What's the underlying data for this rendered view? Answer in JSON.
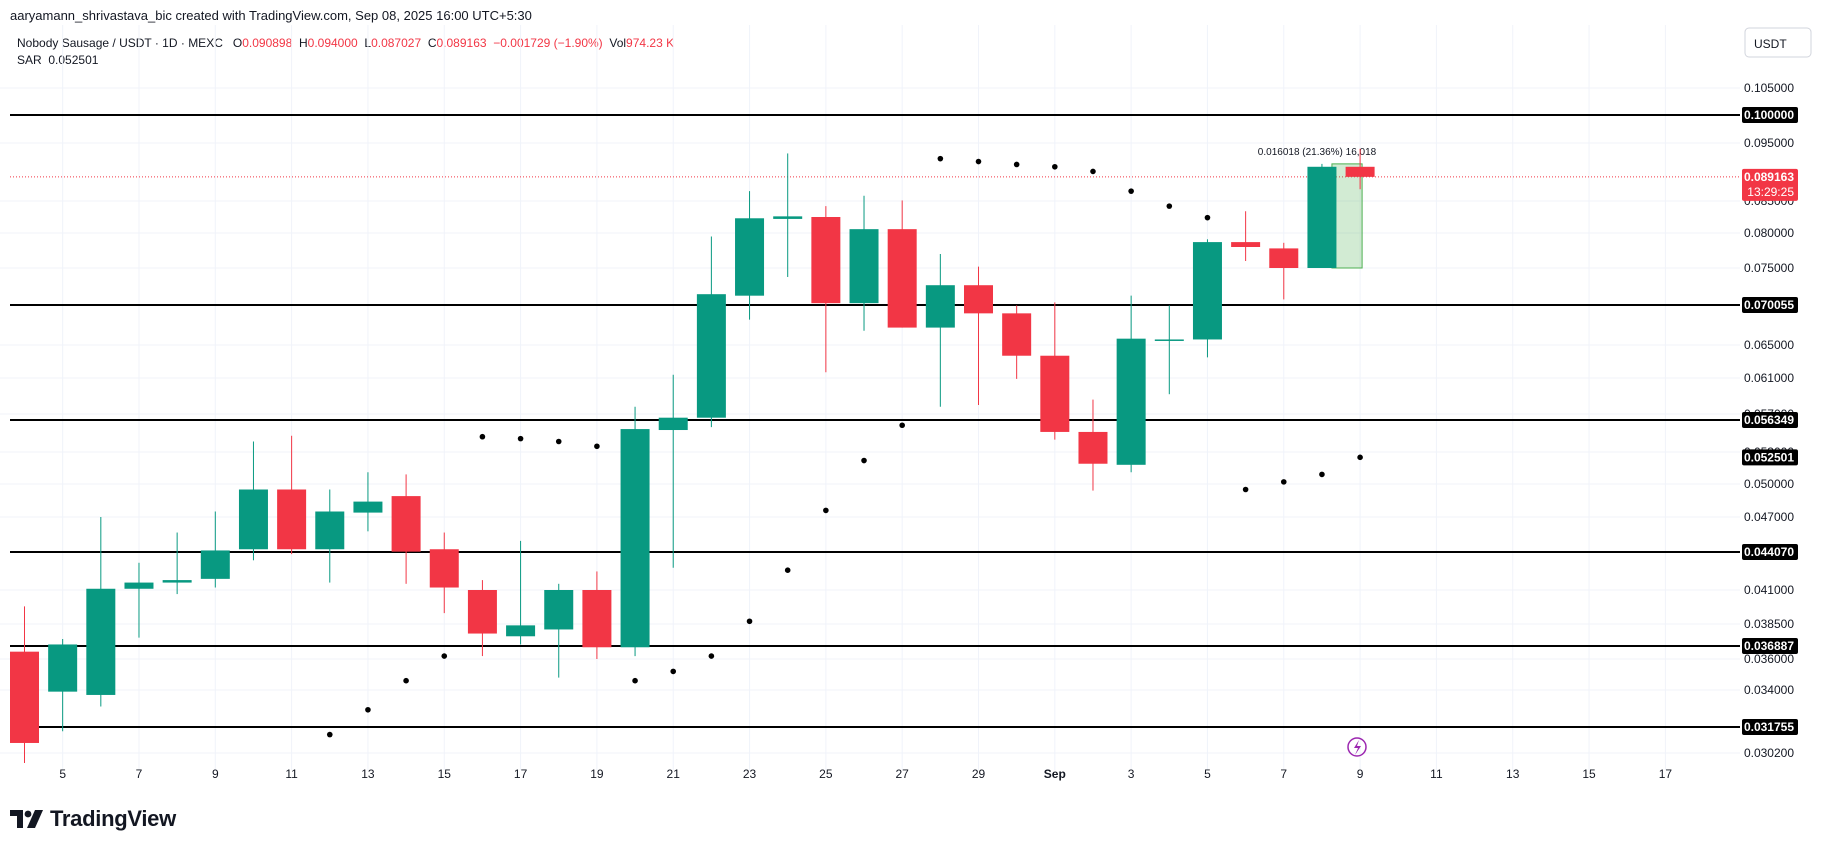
{
  "header": {
    "attribution": "aaryamann_shrivastava_bic created with TradingView.com, Sep 08, 2025 16:00 UTC+5:30"
  },
  "legend": {
    "symbol": "Nobody Sausage / USDT · 1D · MEXC",
    "o_label": "O",
    "o_value": "0.090898",
    "h_label": "H",
    "h_value": "0.094000",
    "l_label": "L",
    "l_value": "0.087027",
    "c_label": "C",
    "c_value": "0.089163",
    "change": "−0.001729 (−1.90%)",
    "vol_label": "Vol",
    "vol_value": "974.23 K",
    "indicator_label": "SAR",
    "indicator_value": "0.052501"
  },
  "currency_button": "USDT",
  "brand": "TradingView",
  "chart_data": {
    "type": "candlestick",
    "colors": {
      "up": "#089981",
      "down": "#f23645",
      "sar": "#000000",
      "level": "#000000",
      "current": "#f23645"
    },
    "price_axis_ticks": [
      "0.105000",
      "0.095000",
      "0.085000",
      "0.080000",
      "0.075000",
      "0.065000",
      "0.061000",
      "0.057000",
      "0.053000",
      "0.050000",
      "0.047000",
      "0.041000",
      "0.038500",
      "0.036000",
      "0.034000",
      "0.030200"
    ],
    "price_axis_tick_values": [
      0.105,
      0.095,
      0.085,
      0.08,
      0.075,
      0.065,
      0.061,
      0.057,
      0.053,
      0.05,
      0.047,
      0.041,
      0.0385,
      0.036,
      0.034,
      0.0302
    ],
    "time_axis_ticks": [
      "5",
      "7",
      "9",
      "11",
      "13",
      "15",
      "17",
      "19",
      "21",
      "23",
      "25",
      "27",
      "29",
      "Sep",
      "3",
      "5",
      "7",
      "9",
      "11",
      "13",
      "15",
      "17"
    ],
    "horizontal_levels": [
      {
        "label": "0.100000",
        "value": 0.1
      },
      {
        "label": "0.070055",
        "value": 0.070055
      },
      {
        "label": "0.056349",
        "value": 0.056349
      },
      {
        "label": "0.044070",
        "value": 0.04407
      },
      {
        "label": "0.036887",
        "value": 0.036887
      },
      {
        "label": "0.031755",
        "value": 0.031755
      }
    ],
    "sar_label": "0.052501",
    "current_price": {
      "label": "0.089163",
      "value": 0.089163,
      "countdown": "13:29:25"
    },
    "measure_label": "0.016018 (21.36%) 16,018",
    "candles": [
      {
        "date": "Aug 4",
        "o": 0.0365,
        "h": 0.0398,
        "l": 0.0296,
        "c": 0.0308
      },
      {
        "date": "Aug 5",
        "o": 0.0339,
        "h": 0.0374,
        "l": 0.0315,
        "c": 0.037
      },
      {
        "date": "Aug 6",
        "o": 0.0337,
        "h": 0.047,
        "l": 0.033,
        "c": 0.0411
      },
      {
        "date": "Aug 7",
        "o": 0.0411,
        "h": 0.0432,
        "l": 0.0375,
        "c": 0.0416
      },
      {
        "date": "Aug 8",
        "o": 0.0416,
        "h": 0.0457,
        "l": 0.0407,
        "c": 0.0418
      },
      {
        "date": "Aug 9",
        "o": 0.0419,
        "h": 0.0475,
        "l": 0.0412,
        "c": 0.0442
      },
      {
        "date": "Aug 10",
        "o": 0.0443,
        "h": 0.0541,
        "l": 0.0434,
        "c": 0.0495
      },
      {
        "date": "Aug 11",
        "o": 0.0495,
        "h": 0.0547,
        "l": 0.0439,
        "c": 0.0443
      },
      {
        "date": "Aug 12",
        "o": 0.0443,
        "h": 0.0495,
        "l": 0.0416,
        "c": 0.0475
      },
      {
        "date": "Aug 13",
        "o": 0.0474,
        "h": 0.0511,
        "l": 0.0458,
        "c": 0.0484
      },
      {
        "date": "Aug 14",
        "o": 0.0489,
        "h": 0.0509,
        "l": 0.0415,
        "c": 0.0441
      },
      {
        "date": "Aug 15",
        "o": 0.0443,
        "h": 0.0457,
        "l": 0.0393,
        "c": 0.0412
      },
      {
        "date": "Aug 16",
        "o": 0.041,
        "h": 0.0418,
        "l": 0.0362,
        "c": 0.0378
      },
      {
        "date": "Aug 17",
        "o": 0.0376,
        "h": 0.045,
        "l": 0.037,
        "c": 0.0384
      },
      {
        "date": "Aug 18",
        "o": 0.0381,
        "h": 0.0415,
        "l": 0.0348,
        "c": 0.041
      },
      {
        "date": "Aug 19",
        "o": 0.041,
        "h": 0.0425,
        "l": 0.036,
        "c": 0.0368
      },
      {
        "date": "Aug 20",
        "o": 0.0368,
        "h": 0.0578,
        "l": 0.0362,
        "c": 0.0554
      },
      {
        "date": "Aug 21",
        "o": 0.0553,
        "h": 0.0614,
        "l": 0.0428,
        "c": 0.0566
      },
      {
        "date": "Aug 22",
        "o": 0.0566,
        "h": 0.0795,
        "l": 0.0556,
        "c": 0.0715
      },
      {
        "date": "Aug 23",
        "o": 0.0713,
        "h": 0.0867,
        "l": 0.0682,
        "c": 0.0823
      },
      {
        "date": "Aug 24",
        "o": 0.0822,
        "h": 0.0932,
        "l": 0.0738,
        "c": 0.0826
      },
      {
        "date": "Aug 25",
        "o": 0.0825,
        "h": 0.0842,
        "l": 0.0617,
        "c": 0.0703
      },
      {
        "date": "Aug 26",
        "o": 0.0703,
        "h": 0.0859,
        "l": 0.0668,
        "c": 0.0806
      },
      {
        "date": "Aug 27",
        "o": 0.0806,
        "h": 0.0851,
        "l": 0.0672,
        "c": 0.0672
      },
      {
        "date": "Aug 28",
        "o": 0.0672,
        "h": 0.077,
        "l": 0.0578,
        "c": 0.0727
      },
      {
        "date": "Aug 29",
        "o": 0.0727,
        "h": 0.0752,
        "l": 0.058,
        "c": 0.069
      },
      {
        "date": "Aug 30",
        "o": 0.069,
        "h": 0.07,
        "l": 0.0609,
        "c": 0.0637
      },
      {
        "date": "Aug 31",
        "o": 0.0637,
        "h": 0.0704,
        "l": 0.0543,
        "c": 0.0551
      },
      {
        "date": "Sep 1",
        "o": 0.0551,
        "h": 0.0586,
        "l": 0.0494,
        "c": 0.0519
      },
      {
        "date": "Sep 2",
        "o": 0.0518,
        "h": 0.0713,
        "l": 0.0511,
        "c": 0.0658
      },
      {
        "date": "Sep 3",
        "o": 0.0657,
        "h": 0.07,
        "l": 0.0592,
        "c": 0.0657
      },
      {
        "date": "Sep 4",
        "o": 0.0657,
        "h": 0.0791,
        "l": 0.0635,
        "c": 0.0787
      },
      {
        "date": "Sep 5",
        "o": 0.0787,
        "h": 0.0834,
        "l": 0.076,
        "c": 0.078
      },
      {
        "date": "Sep 6",
        "o": 0.0778,
        "h": 0.0786,
        "l": 0.0708,
        "c": 0.075
      },
      {
        "date": "Sep 7",
        "o": 0.075,
        "h": 0.0914,
        "l": 0.075,
        "c": 0.0909
      },
      {
        "date": "Sep 8",
        "o": 0.090898,
        "h": 0.094,
        "l": 0.087027,
        "c": 0.089163
      }
    ],
    "sar": [
      {
        "date": "Aug 12",
        "v": 0.0313
      },
      {
        "date": "Aug 13",
        "v": 0.0328
      },
      {
        "date": "Aug 14",
        "v": 0.0346
      },
      {
        "date": "Aug 15",
        "v": 0.0362
      },
      {
        "date": "Aug 16",
        "v": 0.0546
      },
      {
        "date": "Aug 17",
        "v": 0.0544
      },
      {
        "date": "Aug 18",
        "v": 0.0541
      },
      {
        "date": "Aug 19",
        "v": 0.0536
      },
      {
        "date": "Aug 20",
        "v": 0.0346
      },
      {
        "date": "Aug 21",
        "v": 0.0352
      },
      {
        "date": "Aug 22",
        "v": 0.0362
      },
      {
        "date": "Aug 23",
        "v": 0.0387
      },
      {
        "date": "Aug 24",
        "v": 0.0426
      },
      {
        "date": "Aug 25",
        "v": 0.0476
      },
      {
        "date": "Aug 26",
        "v": 0.0522
      },
      {
        "date": "Aug 27",
        "v": 0.0558
      },
      {
        "date": "Aug 28",
        "v": 0.0923
      },
      {
        "date": "Aug 29",
        "v": 0.0918
      },
      {
        "date": "Aug 30",
        "v": 0.0913
      },
      {
        "date": "Aug 31",
        "v": 0.0909
      },
      {
        "date": "Sep 1",
        "v": 0.0901
      },
      {
        "date": "Sep 2",
        "v": 0.0867
      },
      {
        "date": "Sep 3",
        "v": 0.0842
      },
      {
        "date": "Sep 4",
        "v": 0.0824
      },
      {
        "date": "Sep 5",
        "v": 0.0495
      },
      {
        "date": "Sep 6",
        "v": 0.0502
      },
      {
        "date": "Sep 7",
        "v": 0.0509
      },
      {
        "date": "Sep 8",
        "v": 0.052501
      }
    ]
  }
}
